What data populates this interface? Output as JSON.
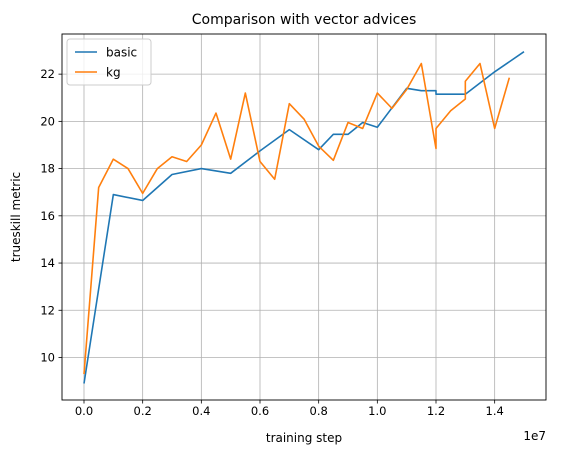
{
  "chart_data": {
    "type": "line",
    "title": "Comparison with vector advices",
    "xlabel": "training step",
    "ylabel": "trueskill metric",
    "x_offset_label": "1e7",
    "xlim": [
      -0.075,
      1.575
    ],
    "ylim": [
      8.2,
      23.7
    ],
    "grid": true,
    "legend_position": "upper left",
    "x_ticks": [
      0.0,
      0.2,
      0.4,
      0.6,
      0.8,
      1.0,
      1.2,
      1.4
    ],
    "x_tick_labels": [
      "0.0",
      "0.2",
      "0.4",
      "0.6",
      "0.8",
      "1.0",
      "1.2",
      "1.4"
    ],
    "y_ticks": [
      10,
      12,
      14,
      16,
      18,
      20,
      22
    ],
    "y_tick_labels": [
      "10",
      "12",
      "14",
      "16",
      "18",
      "20",
      "22"
    ],
    "series": [
      {
        "name": "basic",
        "color": "#1f77b4",
        "x": [
          0.0,
          0.1,
          0.2,
          0.3,
          0.4,
          0.5,
          0.6,
          0.7,
          0.8,
          0.85,
          0.9,
          0.95,
          1.0,
          1.1,
          1.15,
          1.2,
          1.2,
          1.3,
          1.4,
          1.5
        ],
        "y": [
          8.9,
          16.9,
          16.65,
          17.75,
          18.0,
          17.8,
          18.75,
          19.65,
          18.8,
          19.45,
          19.45,
          19.95,
          19.75,
          21.4,
          21.3,
          21.3,
          21.15,
          21.15,
          22.1,
          22.95
        ]
      },
      {
        "name": "kg",
        "color": "#ff7f0e",
        "x": [
          0.0,
          0.05,
          0.1,
          0.15,
          0.2,
          0.25,
          0.3,
          0.35,
          0.4,
          0.45,
          0.5,
          0.55,
          0.6,
          0.65,
          0.7,
          0.75,
          0.8,
          0.85,
          0.9,
          0.95,
          1.0,
          1.05,
          1.1,
          1.15,
          1.2,
          1.2,
          1.25,
          1.3,
          1.3,
          1.35,
          1.4,
          1.45
        ],
        "y": [
          9.3,
          17.2,
          18.4,
          18.0,
          16.95,
          18.0,
          18.5,
          18.3,
          19.0,
          20.35,
          18.4,
          21.2,
          18.3,
          17.55,
          20.75,
          20.1,
          18.95,
          18.35,
          19.95,
          19.7,
          21.2,
          20.55,
          21.35,
          22.45,
          18.85,
          19.7,
          20.45,
          20.95,
          21.7,
          22.45,
          19.7,
          21.85
        ]
      }
    ]
  }
}
